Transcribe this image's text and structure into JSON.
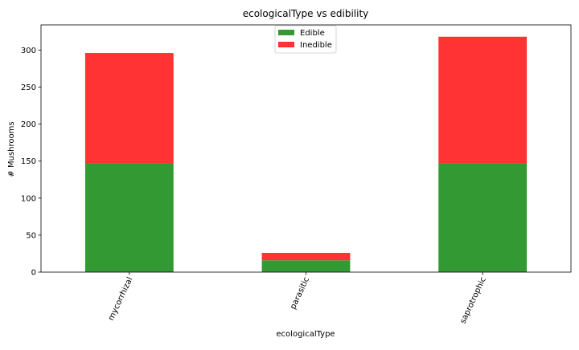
{
  "chart_data": {
    "type": "bar",
    "stacked": true,
    "title": "ecologicalType vs edibility",
    "xlabel": "ecologicalType",
    "ylabel": "# Mushrooms",
    "categories": [
      "mycorrhizal",
      "parasitic",
      "saprotrophic"
    ],
    "series": [
      {
        "name": "Edible",
        "color": "#339933",
        "values": [
          147,
          16,
          147
        ]
      },
      {
        "name": "Inedible",
        "color": "#ff3333",
        "values": [
          149,
          10,
          171
        ]
      }
    ],
    "ylim": [
      0,
      334
    ],
    "yticks": [
      0,
      50,
      100,
      150,
      200,
      250,
      300
    ],
    "legend_position": "top-center",
    "grid": false
  }
}
